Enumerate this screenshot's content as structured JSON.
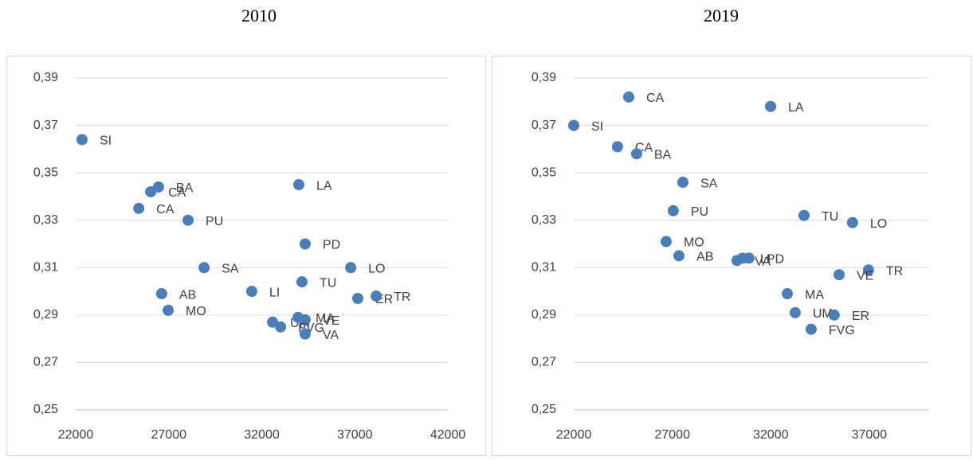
{
  "chart_data": [
    {
      "type": "scatter",
      "title": "2010",
      "color": "#4a7ebb",
      "grid": true,
      "xlim": [
        22000,
        42000
      ],
      "xticks": [
        22000,
        27000,
        32000,
        37000,
        42000
      ],
      "ylim": [
        0.25,
        0.39
      ],
      "yticks": [
        {
          "value": 0.25,
          "label": "0,25"
        },
        {
          "value": 0.27,
          "label": "0,27"
        },
        {
          "value": 0.29,
          "label": "0,29"
        },
        {
          "value": 0.31,
          "label": "0,31"
        },
        {
          "value": 0.33,
          "label": "0,33"
        },
        {
          "value": 0.35,
          "label": "0,35"
        },
        {
          "value": 0.37,
          "label": "0,37"
        },
        {
          "value": 0.39,
          "label": "0,39"
        }
      ],
      "labels": [
        "SI",
        "BA",
        "CA",
        "CA",
        "PU",
        "SA",
        "AB",
        "MO",
        "LA",
        "PD",
        "LO",
        "TU",
        "LI",
        "ER",
        "TR",
        "UM",
        "MA",
        "VE",
        "FVG",
        "VA"
      ],
      "x": [
        22340,
        26450,
        26030,
        25390,
        28040,
        28900,
        26620,
        26970,
        33990,
        34330,
        36780,
        34160,
        31460,
        37160,
        38150,
        32580,
        33950,
        34330,
        33010,
        34330
      ],
      "values": [
        0.364,
        0.344,
        0.342,
        0.335,
        0.33,
        0.31,
        0.299,
        0.292,
        0.345,
        0.32,
        0.31,
        0.304,
        0.3,
        0.297,
        0.298,
        0.287,
        0.289,
        0.288,
        0.285,
        0.282
      ]
    },
    {
      "type": "scatter",
      "title": "2019",
      "color": "#4a7ebb",
      "grid": true,
      "xlim": [
        22000,
        40000
      ],
      "xticks": [
        22000,
        27000,
        32000,
        37000
      ],
      "ylim": [
        0.25,
        0.39
      ],
      "yticks": [
        {
          "value": 0.25,
          "label": "0,25"
        },
        {
          "value": 0.27,
          "label": "0,27"
        },
        {
          "value": 0.29,
          "label": "0,29"
        },
        {
          "value": 0.31,
          "label": "0,31"
        },
        {
          "value": 0.33,
          "label": "0,33"
        },
        {
          "value": 0.35,
          "label": "0,35"
        },
        {
          "value": 0.37,
          "label": "0,37"
        },
        {
          "value": 0.39,
          "label": "0,39"
        }
      ],
      "labels": [
        "SI",
        "CA",
        "LA",
        "CA",
        "BA",
        "SA",
        "PU",
        "TU",
        "LO",
        "MO",
        "AB",
        "VA",
        "LI",
        "PD",
        "TR",
        "VE",
        "MA",
        "UM",
        "ER",
        "FVG"
      ],
      "x": [
        22000,
        24790,
        31990,
        24220,
        25190,
        27540,
        27050,
        33690,
        36150,
        26690,
        27340,
        30290,
        30570,
        30890,
        36960,
        35470,
        32840,
        33240,
        35220,
        34050
      ],
      "values": [
        0.37,
        0.382,
        0.378,
        0.361,
        0.358,
        0.346,
        0.334,
        0.332,
        0.329,
        0.321,
        0.315,
        0.313,
        0.314,
        0.314,
        0.309,
        0.307,
        0.299,
        0.291,
        0.29,
        0.284
      ]
    }
  ]
}
